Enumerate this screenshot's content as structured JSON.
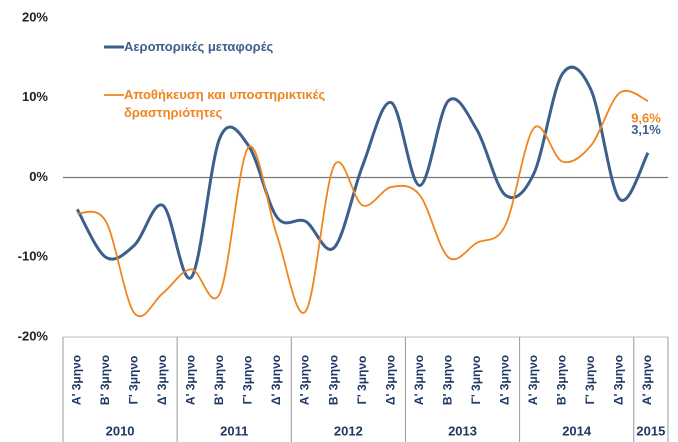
{
  "chart_data": {
    "type": "line",
    "categories": [
      "Α' 3μηνο",
      "Β' 3μηνο",
      "Γ' 3μηνο",
      "Δ' 3μηνο",
      "Α' 3μηνο",
      "Β' 3μηνο",
      "Γ' 3μηνο",
      "Δ' 3μηνο",
      "Α' 3μηνο",
      "Β' 3μηνο",
      "Γ' 3μηνο",
      "Δ' 3μηνο",
      "Α' 3μηνο",
      "Β' 3μηνο",
      "Γ' 3μηνο",
      "Δ' 3μηνο",
      "Α' 3μηνο",
      "Β' 3μηνο",
      "Γ' 3μηνο",
      "Δ' 3μηνο",
      "Α' 3μηνο"
    ],
    "years": [
      "2010",
      "2011",
      "2012",
      "2013",
      "2014",
      "2015"
    ],
    "series": [
      {
        "name": "Αεροπορικές μεταφορές",
        "color": "#3d5f8c",
        "values": [
          -4,
          -10,
          -8.5,
          -3.5,
          -12.5,
          5,
          4,
          -5,
          -5.5,
          -8.8,
          1.5,
          9.4,
          -1,
          9.6,
          6,
          -2.2,
          0.5,
          13,
          11,
          -2.7,
          3.1
        ],
        "value_labels": [
          null,
          null,
          null,
          null,
          null,
          null,
          null,
          null,
          null,
          null,
          null,
          null,
          null,
          null,
          null,
          null,
          null,
          null,
          null,
          null,
          "3,1%"
        ]
      },
      {
        "name": "Αποθήκευση και υποστηρικτικές δραστηριότητες",
        "color": "#f0851f",
        "values": [
          -4.5,
          -5.5,
          -17,
          -14.5,
          -11.5,
          -14.5,
          3.8,
          -7.3,
          -16.8,
          1.5,
          -3.5,
          -1.2,
          -2.2,
          -10,
          -8.2,
          -6,
          6.2,
          2,
          4,
          10.6,
          9.6
        ],
        "value_labels": [
          null,
          null,
          null,
          null,
          null,
          null,
          null,
          null,
          null,
          null,
          null,
          null,
          null,
          null,
          null,
          null,
          null,
          null,
          null,
          null,
          "9,6%"
        ]
      }
    ],
    "ylim": [
      -20,
      20
    ],
    "yticks": [
      {
        "value": -20,
        "label": "-20%"
      },
      {
        "value": -10,
        "label": "-10%"
      },
      {
        "value": 0,
        "label": "0%"
      },
      {
        "value": 10,
        "label": "10%"
      },
      {
        "value": 20,
        "label": "20%"
      }
    ],
    "zero_line": true
  }
}
